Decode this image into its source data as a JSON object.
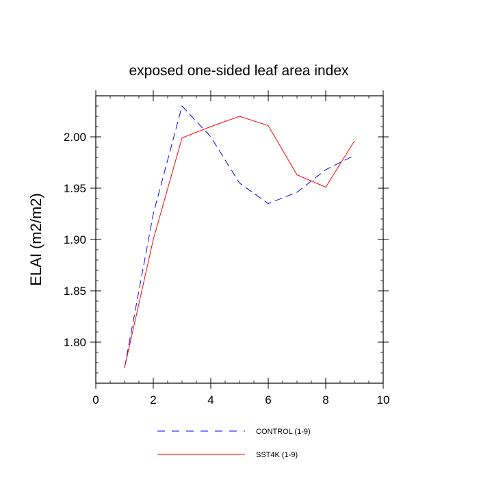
{
  "chart_data": {
    "type": "line",
    "title": "exposed one-sided leaf area index",
    "xlabel": "",
    "ylabel": "ELAI  (m2/m2)",
    "xlim": [
      0,
      10
    ],
    "ylim": [
      1.76,
      2.04
    ],
    "x_ticks": [
      0,
      2,
      4,
      6,
      8,
      10
    ],
    "y_ticks": [
      1.8,
      1.85,
      1.9,
      1.95,
      2.0
    ],
    "y_tick_labels": [
      "1.80",
      "1.85",
      "1.90",
      "1.95",
      "2.00"
    ],
    "grid": false,
    "legend_position": "bottom",
    "series": [
      {
        "name": "CONTROL (1-9)",
        "color": "#0000ff",
        "line_style": "dashed",
        "x": [
          1,
          2,
          3,
          4,
          5,
          6,
          7,
          8,
          9
        ],
        "y": [
          1.775,
          1.925,
          2.03,
          2.0,
          1.955,
          1.935,
          1.946,
          1.968,
          1.982
        ]
      },
      {
        "name": "SST4K (1-9)",
        "color": "#ff0000",
        "line_style": "solid",
        "x": [
          1,
          2,
          3,
          4,
          5,
          6,
          7,
          8,
          9
        ],
        "y": [
          1.775,
          1.9,
          1.999,
          2.01,
          2.02,
          2.011,
          1.963,
          1.951,
          1.996
        ]
      }
    ]
  }
}
